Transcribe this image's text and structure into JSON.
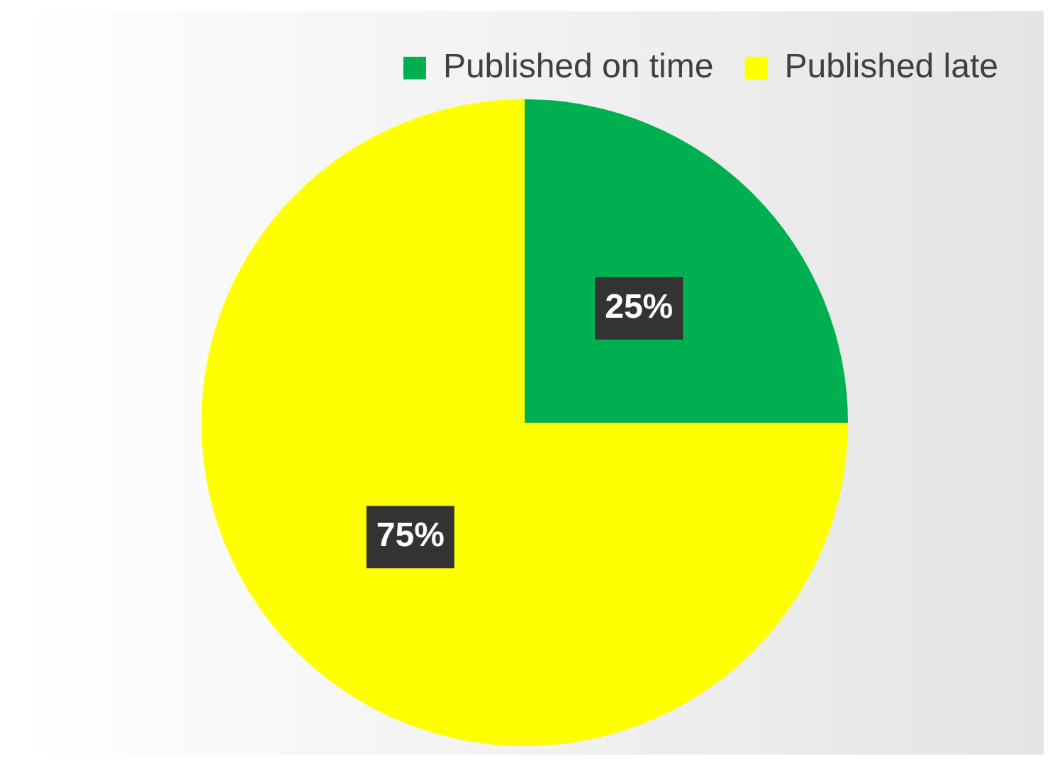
{
  "chart_data": {
    "type": "pie",
    "categories": [
      "Published on time",
      "Published late"
    ],
    "values": [
      25,
      75
    ],
    "colors": [
      "#00b050",
      "#ffff00"
    ],
    "value_labels": [
      "25%",
      "75%"
    ],
    "legend": "top right"
  }
}
